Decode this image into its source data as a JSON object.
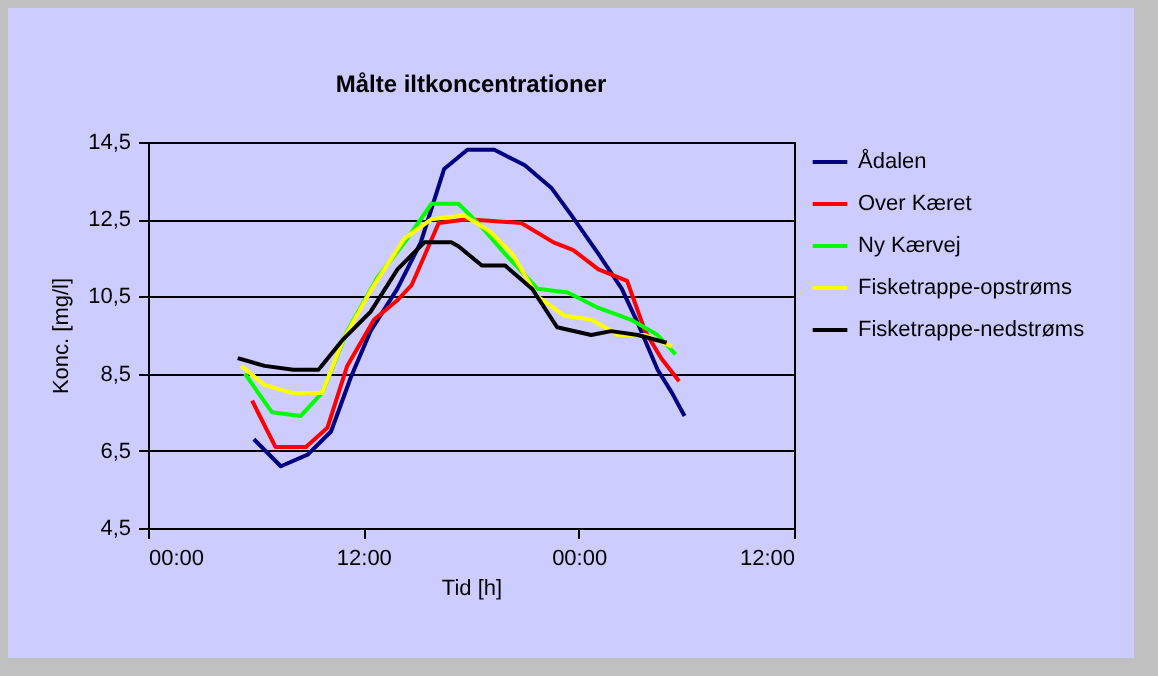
{
  "chart_data": {
    "type": "line",
    "title": "Målte iltkoncentrationer",
    "xlabel": "Tid [h]",
    "ylabel": "Konc. [mg/l]",
    "xlim": [
      "2000-01-01T00:00",
      "2000-01-02T12:00"
    ],
    "ylim": [
      4.5,
      14.5
    ],
    "xticks": [
      {
        "value": "2000-01-01T00:00",
        "label": "00:00"
      },
      {
        "value": "2000-01-01T12:00",
        "label": "12:00"
      },
      {
        "value": "2000-01-02T00:00",
        "label": "00:00"
      },
      {
        "value": "2000-01-02T12:00",
        "label": "12:00"
      }
    ],
    "yticks": [
      {
        "value": 4.5,
        "label": "4,5"
      },
      {
        "value": 6.5,
        "label": "6,5"
      },
      {
        "value": 8.5,
        "label": "8,5"
      },
      {
        "value": 10.5,
        "label": "10,5"
      },
      {
        "value": 12.5,
        "label": "12,5"
      },
      {
        "value": 14.5,
        "label": "14,5"
      }
    ],
    "grid": "y",
    "legend": "right",
    "marker": "none",
    "line_style": "solid",
    "series": [
      {
        "name": "Ådalen",
        "color": "#000080",
        "x": [
          "2000-01-01T05:54",
          "2000-01-01T07:24",
          "2000-01-01T08:54",
          "2000-01-01T10:12",
          "2000-01-01T11:18",
          "2000-01-01T12:24",
          "2000-01-01T13:54",
          "2000-01-01T15:12",
          "2000-01-01T16:30",
          "2000-01-01T17:48",
          "2000-01-01T19:18",
          "2000-01-01T21:00",
          "2000-01-01T22:30",
          "2000-01-01T23:36",
          "2000-01-02T01:06",
          "2000-01-02T02:24",
          "2000-01-02T03:18",
          "2000-01-02T04:24",
          "2000-01-02T05:12",
          "2000-01-02T05:54"
        ],
        "values": [
          6.8,
          6.1,
          6.4,
          7.0,
          8.4,
          9.6,
          10.7,
          11.9,
          13.8,
          14.3,
          14.3,
          13.9,
          13.3,
          12.6,
          11.6,
          10.7,
          9.8,
          8.6,
          8.0,
          7.4
        ]
      },
      {
        "name": "Over Kæret",
        "color": "#ff0000",
        "x": [
          "2000-01-01T05:48",
          "2000-01-01T07:06",
          "2000-01-01T08:48",
          "2000-01-01T10:00",
          "2000-01-01T11:06",
          "2000-01-01T12:36",
          "2000-01-01T13:54",
          "2000-01-01T14:42",
          "2000-01-01T16:12",
          "2000-01-01T17:48",
          "2000-01-01T20:48",
          "2000-01-01T22:36",
          "2000-01-01T23:42",
          "2000-01-02T01:06",
          "2000-01-02T02:42",
          "2000-01-02T03:42",
          "2000-01-02T04:36",
          "2000-01-02T05:36"
        ],
        "values": [
          7.8,
          6.6,
          6.6,
          7.1,
          8.7,
          9.9,
          10.4,
          10.8,
          12.4,
          12.5,
          12.4,
          11.9,
          11.7,
          11.2,
          10.9,
          9.6,
          8.9,
          8.3
        ]
      },
      {
        "name": "Ny Kærvej",
        "color": "#00ff00",
        "x": [
          "2000-01-01T05:24",
          "2000-01-01T06:54",
          "2000-01-01T08:30",
          "2000-01-01T09:42",
          "2000-01-01T11:06",
          "2000-01-01T12:48",
          "2000-01-01T14:18",
          "2000-01-01T15:48",
          "2000-01-01T17:18",
          "2000-01-01T18:24",
          "2000-01-01T19:54",
          "2000-01-01T21:42",
          "2000-01-01T23:24",
          "2000-01-02T01:06",
          "2000-01-02T02:54",
          "2000-01-02T04:24",
          "2000-01-02T05:24"
        ],
        "values": [
          8.5,
          7.5,
          7.4,
          8.0,
          9.6,
          11.0,
          11.9,
          12.9,
          12.9,
          12.4,
          11.6,
          10.7,
          10.6,
          10.2,
          9.9,
          9.5,
          9.0
        ]
      },
      {
        "name": "Fisketrappe-opstrøms",
        "color": "#ffff00",
        "x": [
          "2000-01-01T05:12",
          "2000-01-01T06:30",
          "2000-01-01T08:00",
          "2000-01-01T09:42",
          "2000-01-01T10:54",
          "2000-01-01T12:36",
          "2000-01-01T14:18",
          "2000-01-01T15:48",
          "2000-01-01T17:36",
          "2000-01-01T19:00",
          "2000-01-01T20:18",
          "2000-01-01T21:42",
          "2000-01-01T23:12",
          "2000-01-02T00:42",
          "2000-01-02T02:12",
          "2000-01-02T03:42",
          "2000-01-02T05:12"
        ],
        "values": [
          8.7,
          8.2,
          8.0,
          8.0,
          9.4,
          10.8,
          12.0,
          12.5,
          12.6,
          12.2,
          11.6,
          10.5,
          10.0,
          9.9,
          9.5,
          9.5,
          9.2
        ]
      },
      {
        "name": "Fisketrappe-nedstrøms",
        "color": "#000000",
        "x": [
          "2000-01-01T05:00",
          "2000-01-01T06:30",
          "2000-01-01T08:06",
          "2000-01-01T09:30",
          "2000-01-01T10:54",
          "2000-01-01T12:24",
          "2000-01-01T13:54",
          "2000-01-01T15:24",
          "2000-01-01T16:54",
          "2000-01-01T17:18",
          "2000-01-01T18:36",
          "2000-01-01T19:54",
          "2000-01-01T21:24",
          "2000-01-01T22:48",
          "2000-01-02T00:42",
          "2000-01-02T01:48",
          "2000-01-02T03:18",
          "2000-01-02T04:54"
        ],
        "values": [
          8.9,
          8.7,
          8.6,
          8.6,
          9.4,
          10.1,
          11.2,
          11.9,
          11.9,
          11.8,
          11.3,
          11.3,
          10.7,
          9.7,
          9.5,
          9.6,
          9.5,
          9.3
        ]
      }
    ]
  }
}
